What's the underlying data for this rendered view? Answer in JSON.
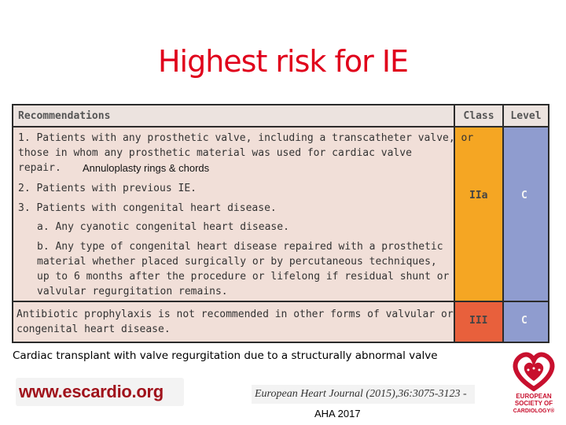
{
  "title": "Highest risk for IE",
  "table": {
    "headers": {
      "recommendations": "Recommendations",
      "class": "Class",
      "level": "Level"
    },
    "row1": {
      "lines": [
        "1.  Patients with any prosthetic valve, including a transcatheter valve, or",
        "    those in whom  any prosthetic material was used for cardiac valve",
        "    repair."
      ],
      "note": "Annuloplasty rings & chords",
      "line2": "2.  Patients with previous IE.",
      "line3": "3.  Patients with congenital heart disease.",
      "line3a": "a.  Any cyanotic congenital heart disease.",
      "line3b": [
        "b.  Any type of congenital heart disease repaired with a prosthetic",
        "    material whether placed surgically or by percutaneous techniques,",
        "    up to 6 months after the procedure or lifelong if residual shunt or",
        "    valvular regurgitation remains."
      ],
      "class": "IIa",
      "level": "C"
    },
    "row2": {
      "lines": [
        "Antibiotic prophylaxis is not recommended in other forms of valvular or",
        "congenital heart disease."
      ],
      "class": "III",
      "level": "C"
    }
  },
  "caption": "Cardiac transplant with valve regurgitation due to a structurally abnormal valve",
  "footer": {
    "url": "www.escardio.org",
    "journal": "European Heart Journal (2015),36:3075-3123 -",
    "aha": "AHA 2017",
    "logo_lines": [
      "EUROPEAN",
      "SOCIETY OF",
      "CARDIOLOGY®"
    ]
  },
  "colors": {
    "title": "#e0001b",
    "class_cell": "#f5a623",
    "class_cell_iii": "#e8603c",
    "level_cell": "#8f9ccf",
    "table_bg": "#f1dfd8",
    "logo": "#c8102e"
  }
}
